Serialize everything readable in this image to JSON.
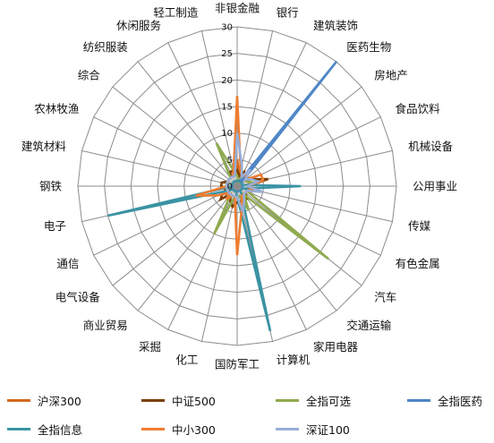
{
  "chart_data": {
    "type": "radar",
    "title": "",
    "rmax": 30,
    "rticks": [
      0,
      5,
      10,
      15,
      20,
      25,
      30
    ],
    "categories": [
      "非银金融",
      "银行",
      "建筑装饰",
      "医药生物",
      "房地产",
      "食品饮料",
      "机械设备",
      "公用事业",
      "传媒",
      "有色金属",
      "汽车",
      "交通运输",
      "家用电器",
      "计算机",
      "国防军工",
      "化工",
      "采掘",
      "商业贸易",
      "电气设备",
      "通信",
      "电子",
      "钢铁",
      "建筑材料",
      "农林牧渔",
      "综合",
      "纺织服装",
      "休闲服务",
      "轻工制造"
    ],
    "series": [
      {
        "name": "沪深300",
        "color": "#D2691E",
        "values": [
          5,
          2,
          2,
          2,
          2,
          2,
          3,
          2,
          2,
          2,
          2,
          2,
          2,
          2,
          2,
          2,
          2,
          2,
          2,
          2,
          2,
          2,
          2,
          2,
          2,
          2,
          2,
          2
        ]
      },
      {
        "name": "中证500",
        "color": "#7B3F00",
        "values": [
          3,
          2,
          3,
          2,
          2,
          3,
          6,
          2,
          2,
          2,
          2,
          3,
          3,
          3,
          3,
          4,
          3,
          2,
          4,
          3,
          2,
          3,
          3,
          2,
          2,
          2,
          3,
          3
        ]
      },
      {
        "name": "全指可选",
        "color": "#8FAA50",
        "values": [
          2,
          1,
          2,
          1,
          2,
          2,
          3,
          2,
          2,
          2,
          22,
          2,
          5,
          2,
          2,
          2,
          10,
          2,
          2,
          2,
          2,
          2,
          2,
          2,
          2,
          2,
          9,
          3
        ]
      },
      {
        "name": "全指医药",
        "color": "#4F86C6",
        "values": [
          1,
          1,
          1,
          30,
          1,
          1,
          1,
          1,
          1,
          1,
          1,
          1,
          1,
          1,
          1,
          1,
          1,
          1,
          1,
          1,
          1,
          1,
          1,
          1,
          1,
          1,
          1,
          1
        ]
      },
      {
        "name": "全指信息",
        "color": "#3B93A3",
        "values": [
          1,
          1,
          1,
          1,
          1,
          1,
          1,
          12,
          2,
          1,
          1,
          1,
          2,
          28,
          2,
          1,
          1,
          1,
          1,
          2,
          25,
          1,
          1,
          1,
          1,
          1,
          1,
          1
        ]
      },
      {
        "name": "中小300",
        "color": "#EE7D31",
        "values": [
          17,
          3,
          2,
          3,
          2,
          5,
          5,
          2,
          3,
          2,
          2,
          2,
          2,
          4,
          13,
          2,
          2,
          3,
          2,
          4,
          8,
          2,
          2,
          2,
          2,
          2,
          2,
          3
        ]
      },
      {
        "name": "深证100",
        "color": "#98AED6",
        "values": [
          10,
          4,
          2,
          4,
          2,
          3,
          4,
          2,
          5,
          2,
          2,
          2,
          3,
          5,
          2,
          2,
          2,
          2,
          2,
          2,
          2,
          2,
          2,
          2,
          2,
          2,
          2,
          2
        ]
      }
    ],
    "legend_position": "bottom",
    "grid": true
  }
}
